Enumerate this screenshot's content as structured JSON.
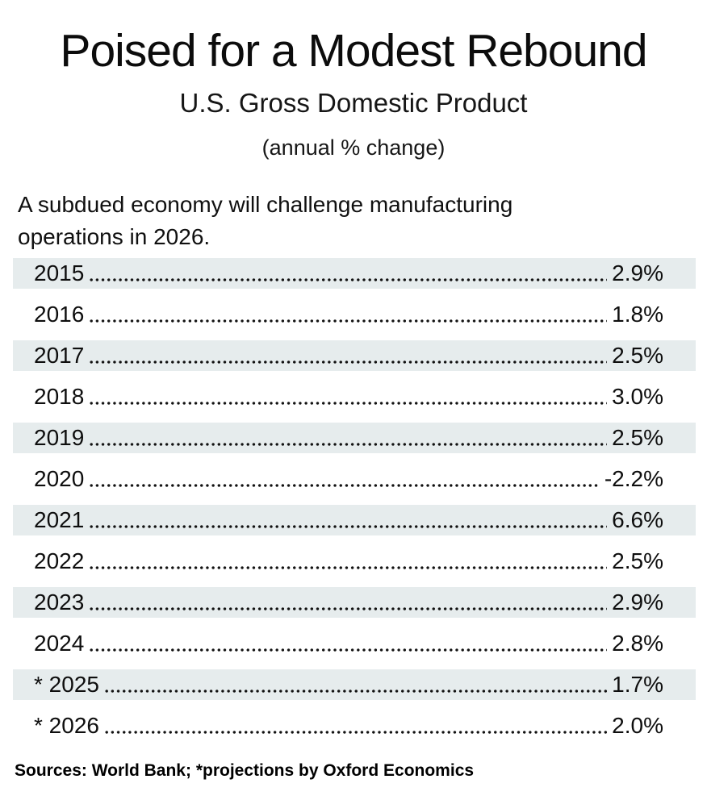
{
  "header": {
    "title": "Poised for a Modest Rebound",
    "subtitle": "U.S. Gross Domestic Product",
    "unit_note": "(annual % change)"
  },
  "description": "A subdued economy will challenge manufacturing operations in 2026.",
  "table": {
    "rows": [
      {
        "year": "2015",
        "value": "2.9%",
        "projected": false
      },
      {
        "year": "2016",
        "value": "1.8%",
        "projected": false
      },
      {
        "year": "2017",
        "value": "2.5%",
        "projected": false
      },
      {
        "year": "2018",
        "value": "3.0%",
        "projected": false
      },
      {
        "year": "2019",
        "value": "2.5%",
        "projected": false
      },
      {
        "year": "2020",
        "value": "-2.2%",
        "projected": false
      },
      {
        "year": "2021",
        "value": "6.6%",
        "projected": false
      },
      {
        "year": "2022",
        "value": "2.5%",
        "projected": false
      },
      {
        "year": "2023",
        "value": "2.9%",
        "projected": false
      },
      {
        "year": "2024",
        "value": "2.8%",
        "projected": false
      },
      {
        "year": "* 2025",
        "value": "1.7%",
        "projected": true
      },
      {
        "year": "* 2026",
        "value": "2.0%",
        "projected": true
      }
    ]
  },
  "footer": {
    "sources": "Sources: World Bank; *projections by Oxford Economics"
  },
  "colors": {
    "row_shade": "#e6eced",
    "text": "#111111"
  },
  "chart_data": {
    "type": "table",
    "title": "Poised for a Modest Rebound",
    "subtitle": "U.S. Gross Domestic Product",
    "unit": "annual % change",
    "categories": [
      "2015",
      "2016",
      "2017",
      "2018",
      "2019",
      "2020",
      "2021",
      "2022",
      "2023",
      "2024",
      "2025",
      "2026"
    ],
    "values": [
      2.9,
      1.8,
      2.5,
      3.0,
      2.5,
      -2.2,
      6.6,
      2.5,
      2.9,
      2.8,
      1.7,
      2.0
    ],
    "projected_years": [
      "2025",
      "2026"
    ],
    "annotation": "A subdued economy will challenge manufacturing operations in 2026.",
    "source": "Sources: World Bank; *projections by Oxford Economics",
    "layout": {
      "shaded_rows": "alternating starting with 2015",
      "leader": "dotted"
    }
  }
}
